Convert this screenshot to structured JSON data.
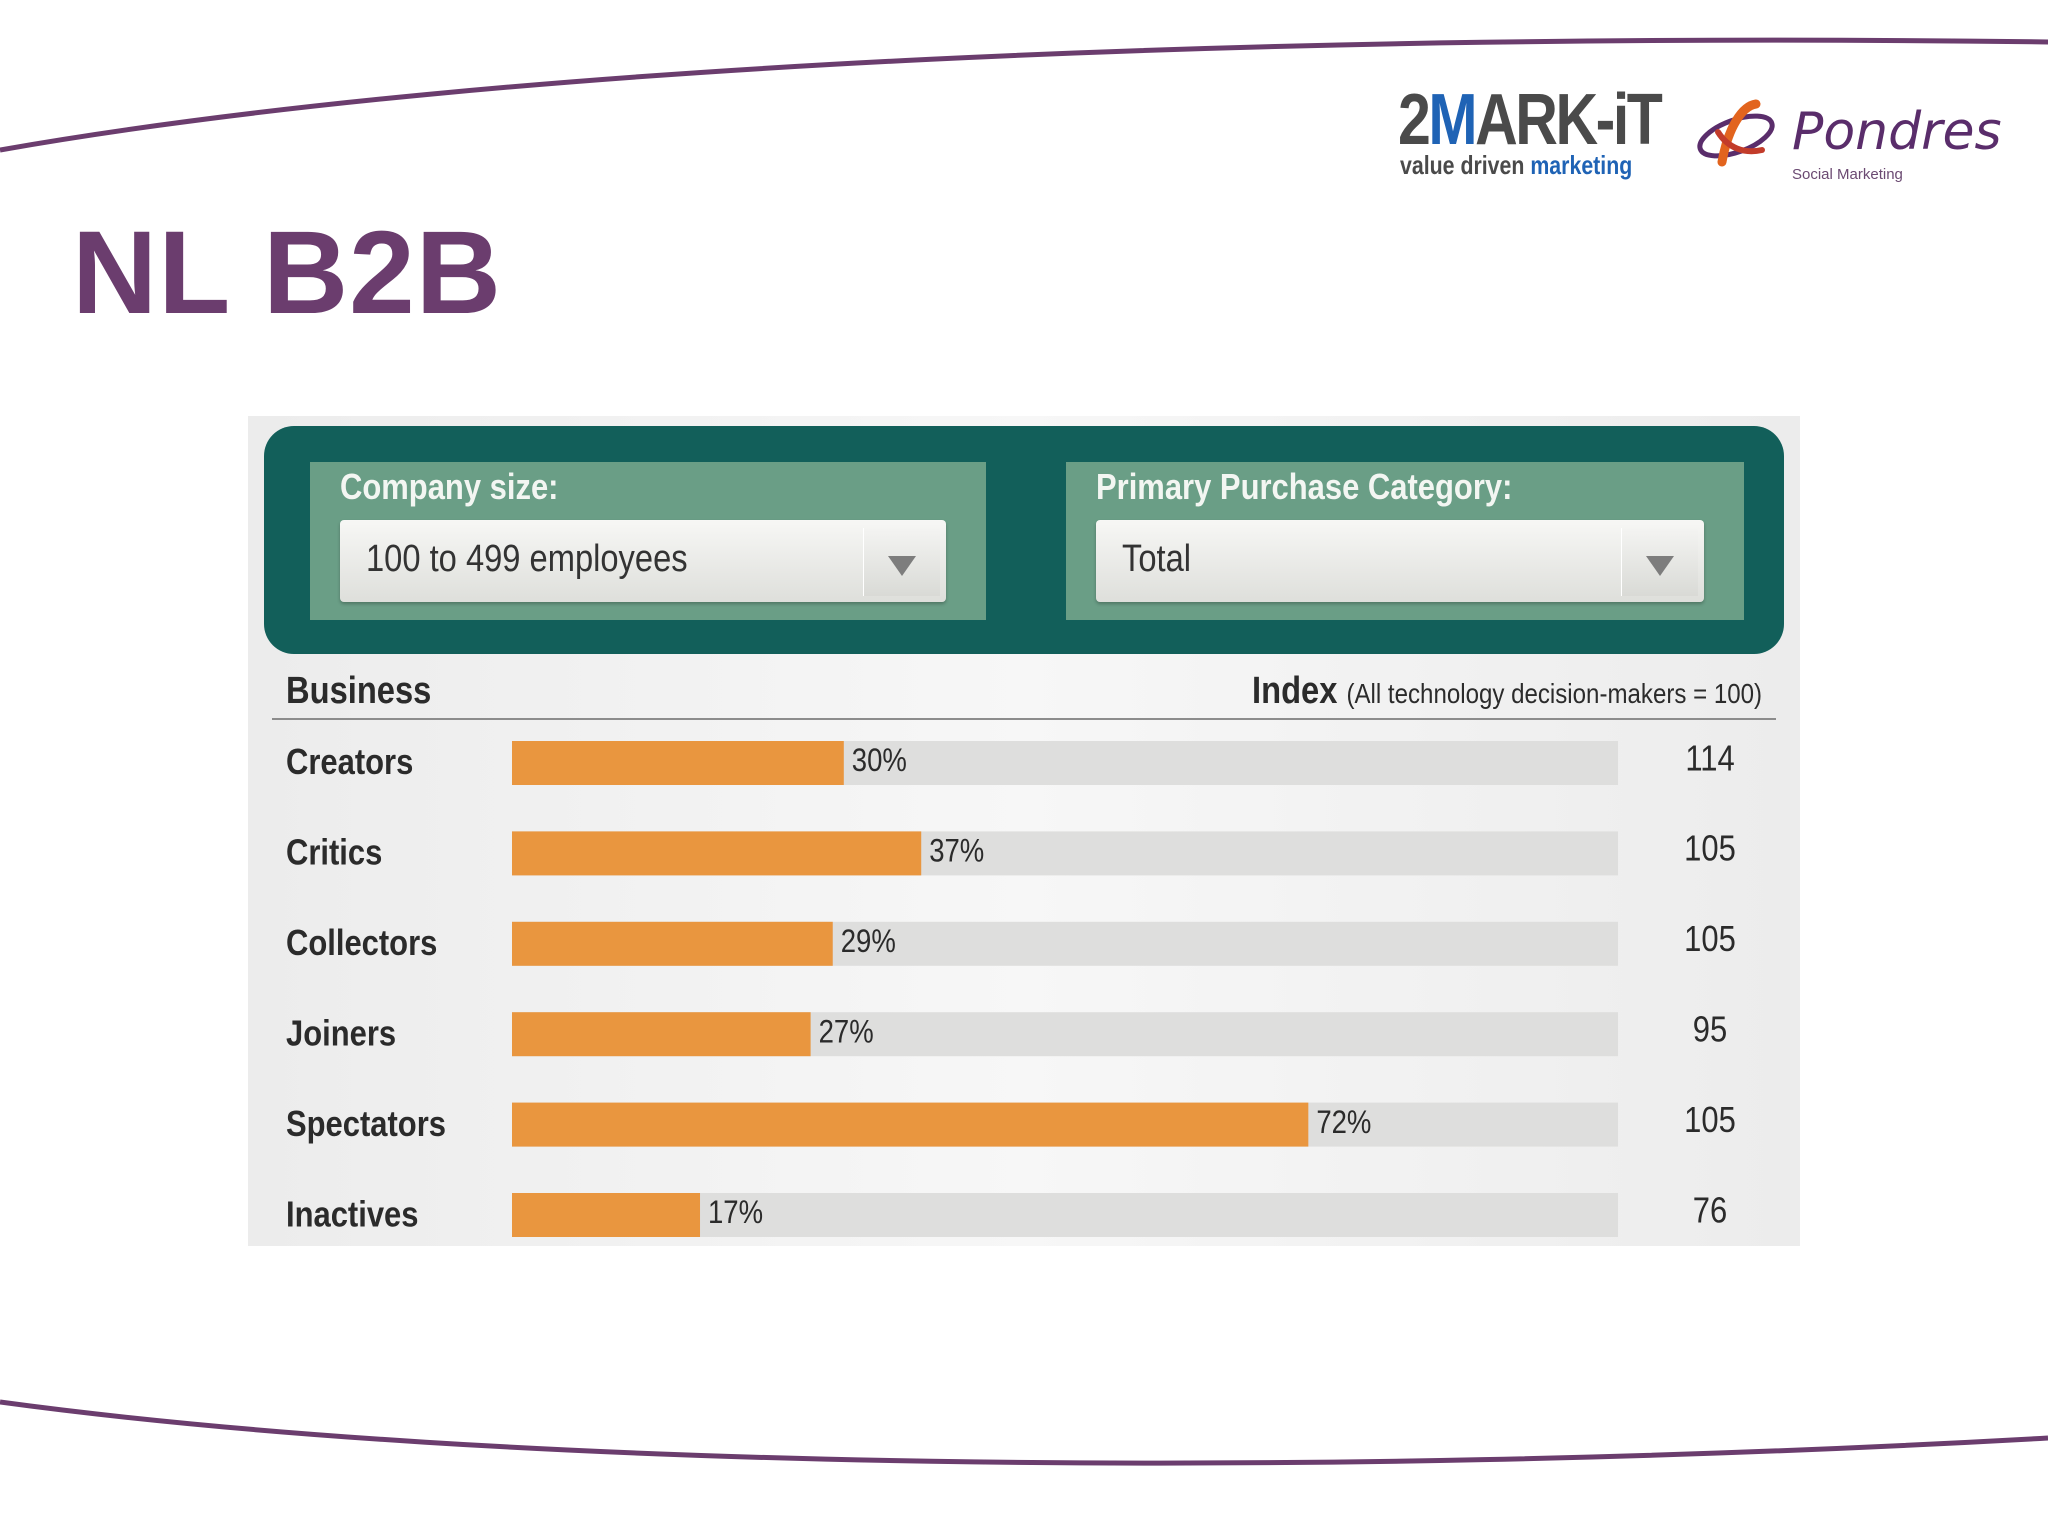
{
  "slide": {
    "title": "NL B2B"
  },
  "logos": {
    "markit": {
      "mark_a": "2",
      "mark_b": "M",
      "mark_c": "ARK-iT",
      "tag_a": "value driven",
      "tag_b": "marketing"
    },
    "pondres": {
      "name": "Pondres",
      "sub": "Social Marketing"
    }
  },
  "filters": {
    "company_size": {
      "label": "Company size:",
      "value": "100 to 499 employees"
    },
    "purchase_category": {
      "label": "Primary Purchase Category:",
      "value": "Total"
    }
  },
  "table": {
    "col_business": "Business",
    "col_index": "Index",
    "col_index_note": "(All technology decision-makers = 100)"
  },
  "colors": {
    "bar": "#e9963f",
    "track": "#dededd",
    "panel": "#125f5a",
    "filter_box": "#6a9e86",
    "title": "#6b3d6e",
    "curve": "#6b3d6e"
  },
  "chart_data": {
    "type": "bar",
    "orientation": "horizontal",
    "categories": [
      "Creators",
      "Critics",
      "Collectors",
      "Joiners",
      "Spectators",
      "Inactives"
    ],
    "values": [
      30,
      37,
      29,
      27,
      72,
      17
    ],
    "value_labels": [
      "30%",
      "37%",
      "29%",
      "27%",
      "72%",
      "17%"
    ],
    "index": [
      "114",
      "105",
      "105",
      "95",
      "105",
      "76"
    ],
    "xlim": [
      0,
      100
    ],
    "grid": false
  }
}
